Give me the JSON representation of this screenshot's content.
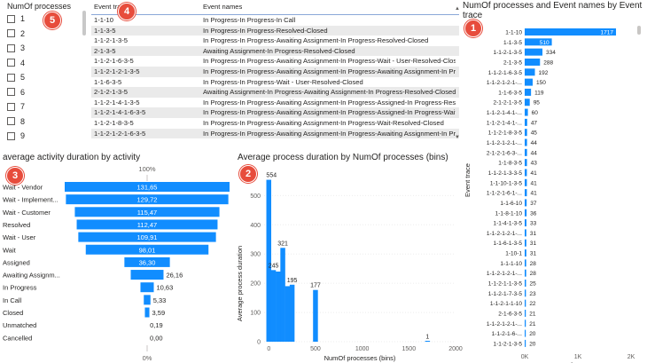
{
  "badges": {
    "b1": "1",
    "b2": "2",
    "b3": "3",
    "b4": "4",
    "b5": "5"
  },
  "slicer": {
    "title": "NumOf processes",
    "items": [
      "1",
      "2",
      "3",
      "4",
      "5",
      "6",
      "7",
      "8",
      "9"
    ]
  },
  "table": {
    "headers": [
      "Event trace",
      "Event names"
    ],
    "rows": [
      [
        "1-1-10",
        "In Progress-In Progress-In Call"
      ],
      [
        "1-1-3-5",
        "In Progress-In Progress-Resolved-Closed"
      ],
      [
        "1-1-2-1-3-5",
        "In Progress-In Progress-Awaiting Assignment-In Progress-Resolved-Closed"
      ],
      [
        "2-1-3-5",
        "Awaiting Assignment-In Progress-Resolved-Closed"
      ],
      [
        "1-1-2-1-6-3-5",
        "In Progress-In Progress-Awaiting Assignment-In Progress-Wait - User-Resolved-Closed"
      ],
      [
        "1-1-2-1-2-1-3-5",
        "In Progress-In Progress-Awaiting Assignment-In Progress-Awaiting Assignment-In Progress-Resolved-Closed"
      ],
      [
        "1-1-6-3-5",
        "In Progress-In Progress-Wait - User-Resolved-Closed"
      ],
      [
        "2-1-2-1-3-5",
        "Awaiting Assignment-In Progress-Awaiting Assignment-In Progress-Resolved-Closed"
      ],
      [
        "1-1-2-1-4-1-3-5",
        "In Progress-In Progress-Awaiting Assignment-In Progress-Assigned-In Progress-Resolved-Closed"
      ],
      [
        "1-1-2-1-4-1-6-3-5",
        "In Progress-In Progress-Awaiting Assignment-In Progress-Assigned-In Progress-Wait - User-Resolved-Closed"
      ],
      [
        "1-1-2-1-8-3-5",
        "In Progress-In Progress-Awaiting Assignment-In Progress-Wait-Resolved-Closed"
      ],
      [
        "1-1-2-1-2-1-6-3-5",
        "In Progress-In Progress-Awaiting Assignment-In Progress-Awaiting Assignment-In Progress-Wait - User-Resolved-Closed"
      ]
    ]
  },
  "chart_data": [
    {
      "type": "bar",
      "orientation": "horizontal",
      "title": "average activity duration by activity",
      "top_label": "100%",
      "bottom_label": "0%",
      "categories": [
        "Wait - Vendor",
        "Wait - Implement...",
        "Wait - Customer",
        "Resolved",
        "Wait - User",
        "Wait",
        "Assigned",
        "Awaiting Assignm...",
        "In Progress",
        "In Call",
        "Closed",
        "Unmatched",
        "Cancelled"
      ],
      "values": [
        131.65,
        129.72,
        115.47,
        112.47,
        109.91,
        98.01,
        36.3,
        26.16,
        10.63,
        5.33,
        3.59,
        0.19,
        0.0
      ],
      "value_labels": [
        "131,65",
        "129,72",
        "115,47",
        "112,47",
        "109,91",
        "98,01",
        "36,30",
        "26,16",
        "10,63",
        "5,33",
        "3,59",
        "0,19",
        "0,00"
      ],
      "color": "#118DFF"
    },
    {
      "type": "bar",
      "title": "Average process duration by NumOf processes (bins)",
      "xlabel": "NumOf processes (bins)",
      "ylabel": "Average process duration",
      "xlim": [
        -50,
        2000
      ],
      "ylim": [
        0,
        580
      ],
      "xticks": [
        0,
        500,
        1000,
        1500,
        2000
      ],
      "yticks": [
        0,
        100,
        200,
        300,
        400,
        500
      ],
      "x": [
        0,
        50,
        100,
        150,
        200,
        250,
        500,
        1700
      ],
      "values": [
        554,
        245,
        240,
        321,
        190,
        195,
        177,
        1
      ],
      "value_labels": [
        "554",
        "245",
        "",
        "321",
        "",
        "195",
        "177",
        "1"
      ],
      "color": "#118DFF"
    },
    {
      "type": "bar",
      "orientation": "horizontal",
      "title": "NumOf processes and Event names by Event trace",
      "xlabel": "NumOf processes",
      "ylabel": "Event trace",
      "xlim": [
        0,
        2000
      ],
      "xticks_labels": [
        "0K",
        "1K",
        "2K"
      ],
      "categories": [
        "1-1-10",
        "1-1-3-5",
        "1-1-2-1-3-5",
        "2-1-3-5",
        "1-1-2-1-6-3-5",
        "1-1-2-1-2-1-...",
        "1-1-6-3-5",
        "2-1-2-1-3-5",
        "1-1-2-1-4-1-...",
        "1-1-2-1-4-1-...",
        "1-1-2-1-8-3-5",
        "1-1-2-1-2-1-...",
        "2-1-2-1-6-3-...",
        "1-1-8-3-5",
        "1-1-2-1-3-3-5",
        "1-1-10-1-3-5",
        "1-1-2-1-6-1-...",
        "1-1-6-10",
        "1-1-8-1-10",
        "1-1-4-1-3-5",
        "1-1-2-1-2-1-...",
        "1-1-6-1-3-5",
        "1-10-1",
        "1-1-1-10",
        "1-1-2-1-2-1-...",
        "1-1-2-1-1-3-5",
        "1-1-2-1-7-3-5",
        "1-1-2-1-1-10",
        "2-1-6-3-5",
        "1-1-2-1-2-1-...",
        "1-1-2-1-6-...",
        "1-1-2-1-3-5"
      ],
      "values": [
        1717,
        510,
        334,
        288,
        192,
        150,
        119,
        95,
        60,
        47,
        45,
        44,
        44,
        43,
        41,
        41,
        41,
        37,
        36,
        33,
        31,
        31,
        31,
        28,
        28,
        25,
        23,
        22,
        21,
        21,
        20,
        20
      ],
      "color": "#118DFF"
    }
  ]
}
